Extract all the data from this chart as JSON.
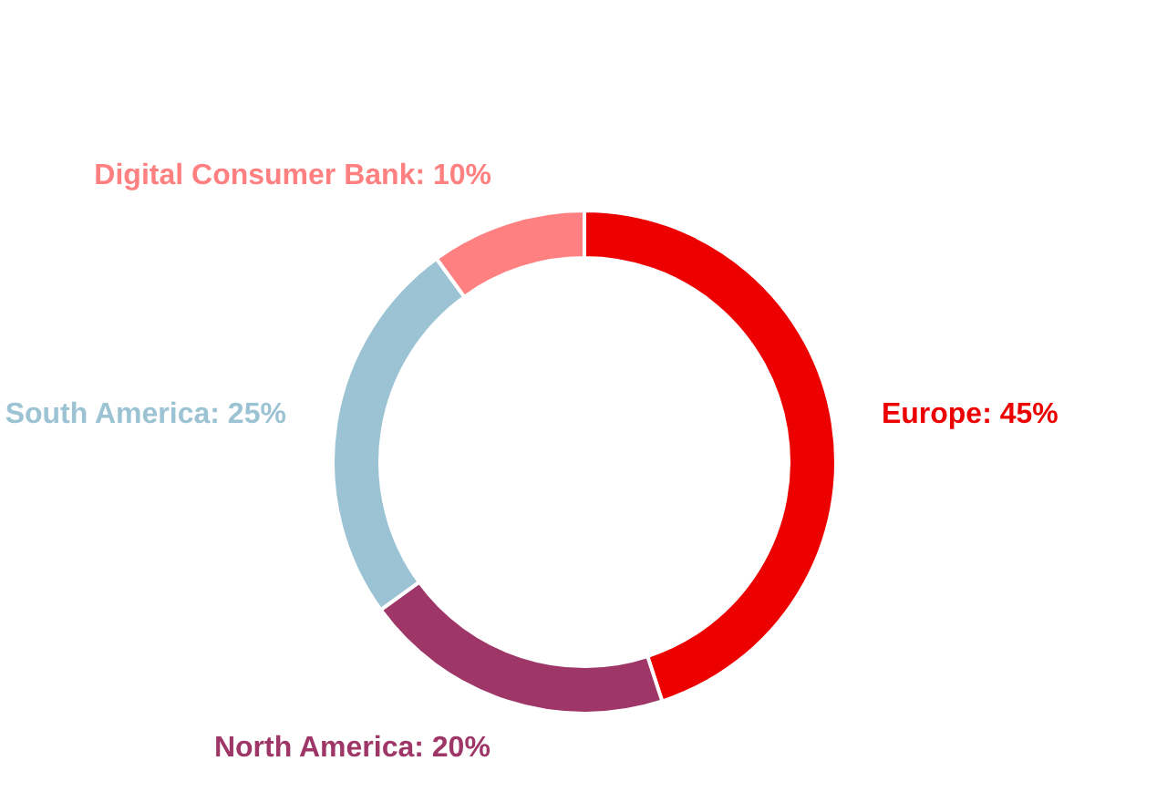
{
  "chart_data": {
    "type": "donut",
    "categories": [
      "Europe",
      "North America",
      "South America",
      "Digital Consumer Bank"
    ],
    "values": [
      45,
      20,
      25,
      10
    ],
    "colors": [
      "#ec0000",
      "#9e3667",
      "#9bc3d3",
      "#ff8080"
    ],
    "value_labels": [
      "45%",
      "20%",
      "25%",
      "10%"
    ],
    "legend": false
  }
}
